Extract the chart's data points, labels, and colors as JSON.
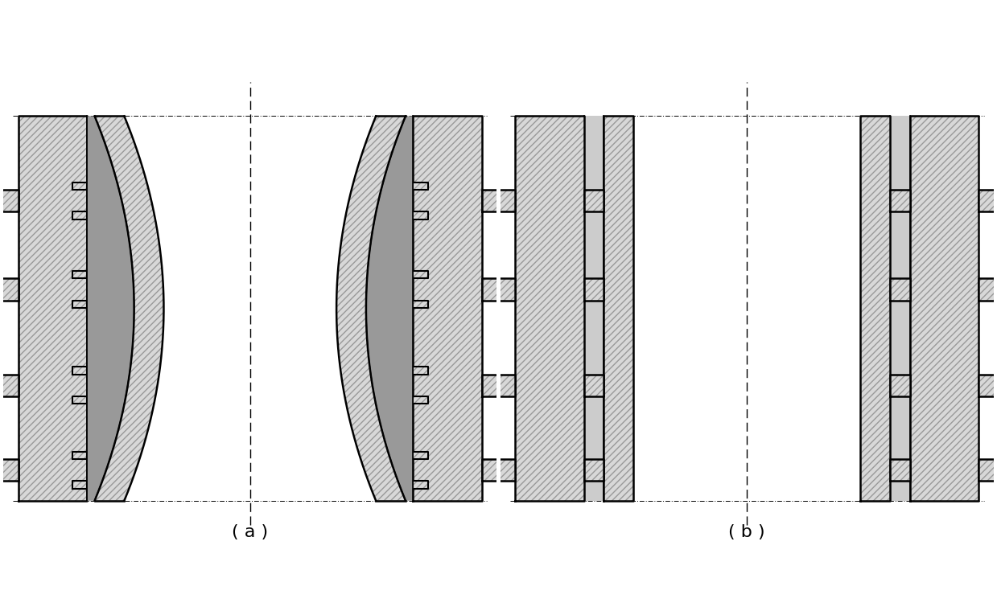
{
  "bg_color": "#ffffff",
  "line_color": "#000000",
  "hatch_color": "#888888",
  "fill_color": "#d8d8d8",
  "dark_strip_color": "#888888",
  "caption_a": "( a )",
  "caption_b": "( b )",
  "label_a": "a",
  "label_b": "b",
  "fig_width": 12.39,
  "fig_height": 7.55,
  "dpi": 100
}
